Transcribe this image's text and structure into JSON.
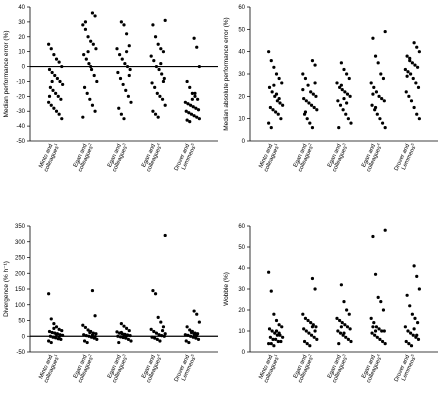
{
  "chart_data": [
    {
      "type": "scatter",
      "ylabel": "Median performance error (%)",
      "ylim": [
        -50,
        40
      ],
      "yticks": [
        -50,
        -40,
        -30,
        -20,
        -10,
        0,
        10,
        20,
        30,
        40
      ],
      "reference_line_y": 0,
      "categories": [
        {
          "line1": "Minto and",
          "line2": "colleagues",
          "sup": "1"
        },
        {
          "line1": "Egan and",
          "line2": "colleagues",
          "sup": "2"
        },
        {
          "line1": "Egan and",
          "line2": "colleagues",
          "sup": "3"
        },
        {
          "line1": "Egan and",
          "line2": "colleagues",
          "sup": "4"
        },
        {
          "line1": "Drover and",
          "line2": "Lemmens",
          "sup": "5"
        }
      ],
      "series": [
        {
          "category_index": 0,
          "values": [
            15,
            12,
            8,
            5,
            3,
            0,
            -2,
            -4,
            -6,
            -8,
            -10,
            -12,
            -14,
            -16,
            -18,
            -20,
            -22,
            -24,
            -26,
            -28,
            -30,
            -32,
            -35,
            -20,
            -10
          ]
        },
        {
          "category_index": 1,
          "values": [
            36,
            34,
            28,
            25,
            20,
            17,
            15,
            12,
            8,
            5,
            2,
            -2,
            -6,
            -10,
            -14,
            -18,
            -22,
            -26,
            -30,
            -34,
            30,
            10,
            0
          ]
        },
        {
          "category_index": 2,
          "values": [
            30,
            28,
            22,
            14,
            12,
            8,
            5,
            2,
            0,
            -2,
            -4,
            -8,
            -12,
            -16,
            -20,
            -24,
            -28,
            -32,
            -35,
            10,
            -6
          ]
        },
        {
          "category_index": 3,
          "values": [
            31,
            28,
            20,
            15,
            12,
            10,
            7,
            4,
            0,
            -2,
            -5,
            -8,
            -11,
            -14,
            -18,
            -20,
            -22,
            -26,
            -30,
            -32,
            -34,
            2,
            -10
          ]
        },
        {
          "category_index": 4,
          "values": [
            19,
            13,
            0,
            -10,
            -14,
            -18,
            -20,
            -22,
            -24,
            -25,
            -26,
            -27,
            -28,
            -29,
            -30,
            -31,
            -32,
            -33,
            -34,
            -35,
            -36,
            -37,
            -22,
            -18
          ]
        }
      ]
    },
    {
      "type": "scatter",
      "ylabel": "Median absolute performance error (%)",
      "ylim": [
        0,
        60
      ],
      "yticks": [
        0,
        10,
        20,
        30,
        40,
        50,
        60
      ],
      "categories": [
        {
          "line1": "Minto and",
          "line2": "colleagues",
          "sup": "1"
        },
        {
          "line1": "Egan and",
          "line2": "colleagues",
          "sup": "2"
        },
        {
          "line1": "Egan and",
          "line2": "colleagues",
          "sup": "3"
        },
        {
          "line1": "Egan and",
          "line2": "colleagues",
          "sup": "4"
        },
        {
          "line1": "Drover and",
          "line2": "Lemmens",
          "sup": "5"
        }
      ],
      "series": [
        {
          "category_index": 0,
          "values": [
            40,
            36,
            33,
            30,
            28,
            26,
            24,
            22,
            20,
            18,
            17,
            16,
            15,
            14,
            13,
            12,
            10,
            8,
            6,
            25,
            21,
            19
          ]
        },
        {
          "category_index": 1,
          "values": [
            36,
            34,
            30,
            28,
            25,
            22,
            21,
            20,
            19,
            18,
            17,
            16,
            15,
            14,
            12,
            10,
            8,
            6,
            26,
            23,
            13
          ]
        },
        {
          "category_index": 2,
          "values": [
            35,
            32,
            30,
            28,
            26,
            24,
            23,
            22,
            21,
            20,
            18,
            16,
            14,
            12,
            10,
            8,
            6,
            25,
            19,
            17
          ]
        },
        {
          "category_index": 3,
          "values": [
            49,
            46,
            38,
            35,
            30,
            28,
            26,
            24,
            22,
            20,
            19,
            18,
            16,
            14,
            12,
            10,
            8,
            6,
            21,
            15
          ]
        },
        {
          "category_index": 4,
          "values": [
            44,
            42,
            40,
            38,
            36,
            35,
            34,
            33,
            32,
            31,
            30,
            28,
            26,
            24,
            22,
            20,
            18,
            15,
            12,
            10,
            29,
            37
          ]
        }
      ]
    },
    {
      "type": "scatter",
      "ylabel": "Divergence (% h⁻¹)",
      "ylim": [
        -50,
        350
      ],
      "yticks": [
        -50,
        0,
        50,
        100,
        150,
        200,
        250,
        300,
        350
      ],
      "reference_line_y": 0,
      "categories": [
        {
          "line1": "Minto and",
          "line2": "colleagues",
          "sup": "1"
        },
        {
          "line1": "Egan and",
          "line2": "colleagues",
          "sup": "2"
        },
        {
          "line1": "Egan and",
          "line2": "colleagues",
          "sup": "3"
        },
        {
          "line1": "Egan and",
          "line2": "colleagues",
          "sup": "4"
        },
        {
          "line1": "Drover and",
          "line2": "Lemmens",
          "sup": "5"
        }
      ],
      "series": [
        {
          "category_index": 0,
          "values": [
            135,
            55,
            40,
            30,
            22,
            18,
            15,
            12,
            10,
            8,
            5,
            3,
            0,
            -3,
            -5,
            -8,
            -10,
            -15,
            -20,
            25,
            6,
            -2
          ]
        },
        {
          "category_index": 1,
          "values": [
            145,
            65,
            35,
            28,
            20,
            15,
            10,
            8,
            5,
            2,
            0,
            -3,
            -6,
            -10,
            -15,
            -20,
            12,
            4,
            -1
          ]
        },
        {
          "category_index": 2,
          "values": [
            40,
            32,
            25,
            18,
            14,
            10,
            8,
            6,
            4,
            2,
            0,
            -2,
            -4,
            -6,
            -10,
            -15,
            -20,
            12,
            5,
            1
          ]
        },
        {
          "category_index": 3,
          "values": [
            320,
            145,
            135,
            60,
            45,
            30,
            22,
            15,
            10,
            5,
            2,
            0,
            -3,
            -6,
            -10,
            -15,
            18,
            8
          ]
        },
        {
          "category_index": 4,
          "values": [
            80,
            70,
            45,
            30,
            20,
            15,
            10,
            8,
            5,
            3,
            0,
            -3,
            -6,
            -10,
            -15,
            -20,
            12,
            6,
            2
          ]
        }
      ]
    },
    {
      "type": "scatter",
      "ylabel": "Wobble (%)",
      "ylim": [
        0,
        60
      ],
      "yticks": [
        0,
        10,
        20,
        30,
        40,
        50,
        60
      ],
      "categories": [
        {
          "line1": "Minto and",
          "line2": "colleagues",
          "sup": "1"
        },
        {
          "line1": "Egan and",
          "line2": "colleagues",
          "sup": "2"
        },
        {
          "line1": "Egan and",
          "line2": "colleagues",
          "sup": "3"
        },
        {
          "line1": "Egan and",
          "line2": "colleagues",
          "sup": "4"
        },
        {
          "line1": "Drover and",
          "line2": "Lemmens",
          "sup": "5"
        }
      ],
      "series": [
        {
          "category_index": 0,
          "values": [
            38,
            29,
            18,
            15,
            13,
            12,
            11,
            10,
            9,
            8,
            8,
            7,
            7,
            6,
            6,
            5,
            5,
            4,
            4,
            3,
            10,
            9
          ]
        },
        {
          "category_index": 1,
          "values": [
            35,
            30,
            18,
            16,
            15,
            14,
            13,
            12,
            11,
            10,
            9,
            8,
            7,
            6,
            5,
            4,
            3,
            12,
            10
          ]
        },
        {
          "category_index": 2,
          "values": [
            32,
            24,
            20,
            18,
            16,
            15,
            14,
            13,
            12,
            11,
            10,
            9,
            8,
            7,
            6,
            5,
            4,
            12,
            9
          ]
        },
        {
          "category_index": 3,
          "values": [
            58,
            55,
            37,
            26,
            24,
            20,
            16,
            14,
            12,
            11,
            10,
            10,
            9,
            8,
            7,
            6,
            5,
            4,
            12,
            10
          ]
        },
        {
          "category_index": 4,
          "values": [
            41,
            36,
            30,
            27,
            22,
            18,
            16,
            14,
            12,
            10,
            9,
            8,
            7,
            6,
            5,
            4,
            3,
            11,
            8
          ]
        }
      ]
    }
  ]
}
